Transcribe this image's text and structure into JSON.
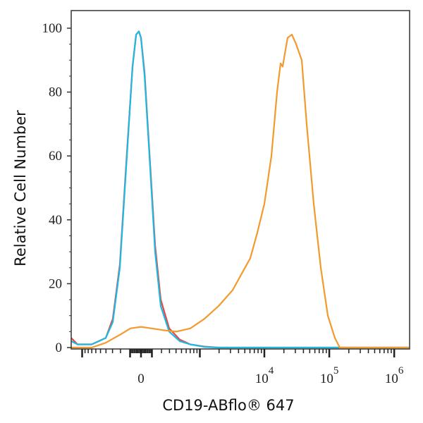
{
  "chart_data": {
    "type": "line",
    "xlabel": "CD19-ABflo® 647",
    "ylabel": "Relative Cell Number",
    "x_scale": "biexponential",
    "xlim": [
      -1500,
      1700000
    ],
    "ylim": [
      0,
      100
    ],
    "grid": false,
    "legend": "none",
    "y_ticks": [
      0,
      20,
      40,
      60,
      80,
      100
    ],
    "x_ticks": [
      {
        "value": 0,
        "label": "0",
        "exp": ""
      },
      {
        "value": 10000,
        "label": "10",
        "exp": "4"
      },
      {
        "value": 100000,
        "label": "10",
        "exp": "5"
      },
      {
        "value": 1000000,
        "label": "10",
        "exp": "6"
      }
    ],
    "series": [
      {
        "color": "#e8473f",
        "x": [
          -1487,
          -1182,
          -703,
          -404,
          -296,
          -207,
          -131,
          -77,
          -44,
          -19,
          0,
          32,
          77,
          131,
          191,
          296,
          467,
          703,
          1182,
          1963,
          1680000
        ],
        "y": [
          3,
          1,
          1,
          3,
          9,
          26,
          61,
          88,
          98,
          99,
          97,
          86,
          61,
          32,
          15,
          6,
          2.5,
          1,
          0.3,
          0,
          0
        ]
      },
      {
        "color": "#1fb8e0",
        "x": [
          -1487,
          -1182,
          -703,
          -404,
          -296,
          -207,
          -131,
          -77,
          -44,
          -19,
          0,
          32,
          77,
          131,
          191,
          296,
          467,
          703,
          1182,
          1963,
          1680000
        ],
        "y": [
          2,
          1,
          1,
          3,
          8,
          25,
          60,
          88,
          98,
          99,
          97,
          85,
          60,
          30,
          13,
          5,
          2,
          1,
          0.2,
          0,
          0
        ]
      },
      {
        "color": "#f39a2e",
        "x": [
          -1487,
          -703,
          -404,
          -207,
          -97,
          0,
          97,
          207,
          404,
          703,
          1182,
          1963,
          3246,
          4730,
          6073,
          7787,
          10004,
          12852,
          15700,
          17791,
          19177,
          20664,
          22831,
          26536,
          30820,
          37649,
          44856,
          57582,
          73937,
          94928,
          121892,
          145152,
          1680000
        ],
        "y": [
          0,
          0,
          1.5,
          4,
          6,
          6.5,
          6,
          5.5,
          5,
          6,
          9,
          13,
          18,
          24,
          28,
          36,
          45,
          60,
          80,
          89,
          88,
          92,
          97,
          98,
          95,
          90,
          70,
          45,
          25,
          10,
          3,
          0,
          0
        ]
      }
    ]
  }
}
